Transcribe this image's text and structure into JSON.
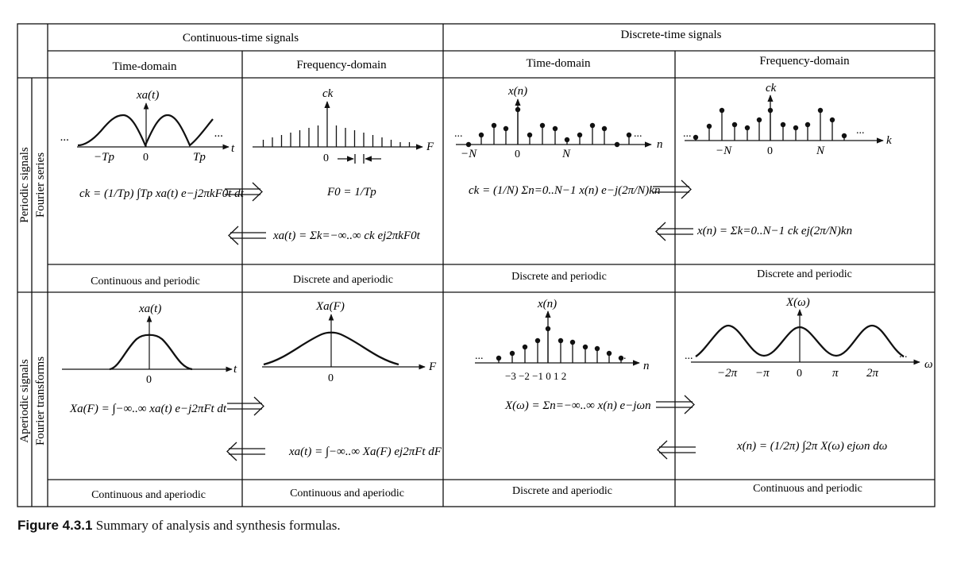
{
  "headers": {
    "continuous": "Continuous-time signals",
    "discrete": "Discrete-time signals",
    "time_domain": "Time-domain",
    "frequency_domain": "Frequency-domain"
  },
  "row_labels": {
    "periodic": "Periodic signals",
    "fourier_series": "Fourier series",
    "aperiodic": "Aperiodic signals",
    "fourier_transforms": "Fourier transforms"
  },
  "cell_labels": {
    "p_ct_time": "Continuous and periodic",
    "p_ct_freq": "Discrete and aperiodic",
    "p_dt_time": "Discrete and periodic",
    "p_dt_freq": "Discrete and periodic",
    "a_ct_time": "Continuous and aperiodic",
    "a_ct_freq": "Continuous and aperiodic",
    "a_dt_time": "Discrete and aperiodic",
    "a_dt_freq": "Continuous and periodic"
  },
  "axis_labels": {
    "xa_t": "xa(t)",
    "ck": "ck",
    "xn": "x(n)",
    "Xa_F": "Xa(F)",
    "X_w": "X(ω)",
    "t": "t",
    "F": "F",
    "n": "n",
    "k": "k",
    "w": "ω",
    "neg_Tp": "−Tp",
    "zero": "0",
    "Tp": "Tp",
    "neg_N": "−N",
    "N": "N",
    "dt_ticks": "−3 −2 −1 0  1  2",
    "neg_2pi": "−2π",
    "neg_pi": "−π",
    "pi": "π",
    "two_pi": "2π",
    "ellipsis": "..."
  },
  "formulas": {
    "ck_ct": "ck = (1/Tp) ∫Tp xa(t) e−j2πkF0t dt",
    "F0": "F0 = 1/Tp",
    "xa_series": "xa(t) = Σk=−∞..∞ ck ej2πkF0t",
    "ck_dt": "ck = (1/N) Σn=0..N−1 x(n) e−j(2π/N)kn",
    "xn_series": "x(n) = Σk=0..N−1 ck ej(2π/N)kn",
    "Xa_F": "Xa(F) = ∫−∞..∞ xa(t) e−j2πFt dt",
    "xa_inverse": "xa(t) = ∫−∞..∞ Xa(F) ej2πFt dF",
    "X_w": "X(ω) = Σn=−∞..∞ x(n) e−jωn",
    "xn_inverse": "x(n) = (1/2π) ∫2π X(ω) ejωn dω"
  },
  "caption": {
    "label": "Figure 4.3.1",
    "text": "Summary of analysis and synthesis formulas."
  }
}
